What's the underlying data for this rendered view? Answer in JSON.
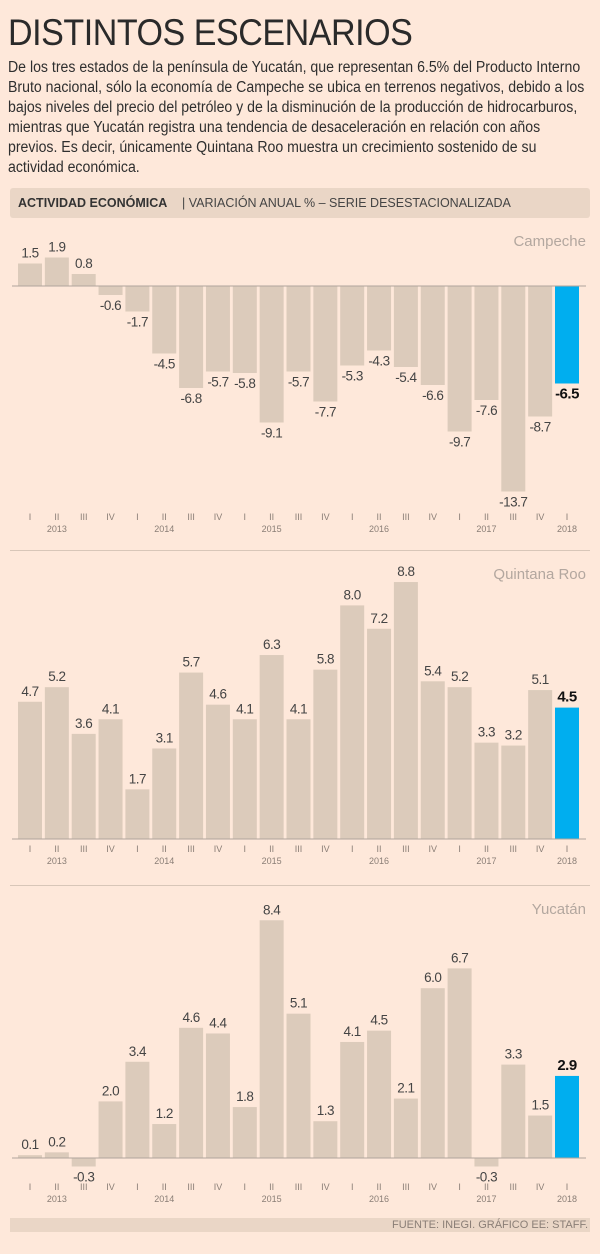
{
  "title": "DISTINTOS ESCENARIOS",
  "intro": "De los tres estados de la península de Yucatán, que representan 6.5% del Producto Interno Bruto nacional, sólo la economía de Campeche se ubica en terrenos negativos, debido a los bajos niveles del precio del petróleo y de la disminución de la producción de hidrocarburos, mientras que Yucatán registra una tendencia de desaceleración en relación con años previos. Es decir, únicamente Quintana Roo muestra un crecimiento sostenido de su actividad económica.",
  "header": {
    "bold": "ACTIVIDAD ECONÓMICA",
    "subtitle": "VARIACIÓN ANUAL % – SERIE DESESTACIONALIZADA"
  },
  "footer": "FUENTE: INEGI. GRÁFICO EE: STAFF.",
  "colors": {
    "bar": "#dccbbb",
    "highlight": "#00aeef",
    "background": "#fee8da"
  },
  "chart_data": [
    {
      "type": "bar",
      "title": "Campeche",
      "categories": [
        "I",
        "II",
        "III",
        "IV",
        "I",
        "II",
        "III",
        "IV",
        "I",
        "II",
        "III",
        "IV",
        "I",
        "II",
        "III",
        "IV",
        "I",
        "II",
        "III",
        "IV",
        "I"
      ],
      "years": [
        {
          "label": "2013",
          "index": 1
        },
        {
          "label": "2014",
          "index": 5
        },
        {
          "label": "2015",
          "index": 9
        },
        {
          "label": "2016",
          "index": 13
        },
        {
          "label": "2017",
          "index": 17
        },
        {
          "label": "2018",
          "index": 20
        }
      ],
      "values": [
        1.5,
        1.9,
        0.8,
        -0.6,
        -1.7,
        -4.5,
        -6.8,
        -5.7,
        -5.8,
        -9.1,
        -5.7,
        -7.7,
        -5.3,
        -4.3,
        -5.4,
        -6.6,
        -9.7,
        -7.6,
        -13.7,
        -8.7,
        -6.5
      ],
      "labels": [
        "1.5",
        "1.9",
        "0.8",
        "-0.6",
        "-1.7",
        "-4.5",
        "-6.8",
        "-5.7",
        "-5.8",
        "-9.1",
        "-5.7",
        "-7.7",
        "-5.3",
        "-4.3",
        "-5.4",
        "-6.6",
        "-9.7",
        "-7.6",
        "-13.7",
        "-8.7",
        "-6.5"
      ],
      "highlight_last": true
    },
    {
      "type": "bar",
      "title": "Quintana Roo",
      "categories": [
        "I",
        "II",
        "III",
        "IV",
        "I",
        "II",
        "III",
        "IV",
        "I",
        "II",
        "III",
        "IV",
        "I",
        "II",
        "III",
        "IV",
        "I",
        "II",
        "III",
        "IV",
        "I"
      ],
      "years": [
        {
          "label": "2013",
          "index": 1
        },
        {
          "label": "2014",
          "index": 5
        },
        {
          "label": "2015",
          "index": 9
        },
        {
          "label": "2016",
          "index": 13
        },
        {
          "label": "2017",
          "index": 17
        },
        {
          "label": "2018",
          "index": 20
        }
      ],
      "values": [
        4.7,
        5.2,
        3.6,
        4.1,
        1.7,
        3.1,
        5.7,
        4.6,
        4.1,
        6.3,
        4.1,
        5.8,
        8.0,
        7.2,
        8.8,
        5.4,
        5.2,
        3.3,
        3.2,
        5.1,
        4.5
      ],
      "labels": [
        "4.7",
        "5.2",
        "3.6",
        "4.1",
        "1.7",
        "3.1",
        "5.7",
        "4.6",
        "4.1",
        "6.3",
        "4.1",
        "5.8",
        "8.0",
        "7.2",
        "8.8",
        "5.4",
        "5.2",
        "3.3",
        "3.2",
        "5.1",
        "4.5"
      ],
      "highlight_last": true
    },
    {
      "type": "bar",
      "title": "Yucatán",
      "categories": [
        "I",
        "II",
        "III",
        "IV",
        "I",
        "II",
        "III",
        "IV",
        "I",
        "II",
        "III",
        "IV",
        "I",
        "II",
        "III",
        "IV",
        "I",
        "II",
        "III",
        "IV",
        "I"
      ],
      "years": [
        {
          "label": "2013",
          "index": 1
        },
        {
          "label": "2014",
          "index": 5
        },
        {
          "label": "2015",
          "index": 9
        },
        {
          "label": "2016",
          "index": 13
        },
        {
          "label": "2017",
          "index": 17
        },
        {
          "label": "2018",
          "index": 20
        }
      ],
      "values": [
        0.1,
        0.2,
        -0.3,
        2.0,
        3.4,
        1.2,
        4.6,
        4.4,
        1.8,
        8.4,
        5.1,
        1.3,
        4.1,
        4.5,
        2.1,
        6.0,
        6.7,
        -0.3,
        3.3,
        1.5,
        2.9
      ],
      "labels": [
        "0.1",
        "0.2",
        "-0.3",
        "2.0",
        "3.4",
        "1.2",
        "4.6",
        "4.4",
        "1.8",
        "8.4",
        "5.1",
        "1.3",
        "4.1",
        "4.5",
        "2.1",
        "6.0",
        "6.7",
        "-0.3",
        "3.3",
        "1.5",
        "2.9"
      ],
      "highlight_last": true
    }
  ]
}
